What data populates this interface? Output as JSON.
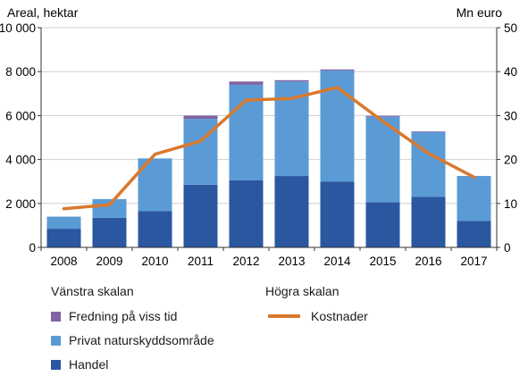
{
  "chart_data": {
    "type": "bar",
    "stacked": true,
    "categories": [
      "2008",
      "2009",
      "2010",
      "2011",
      "2012",
      "2013",
      "2014",
      "2015",
      "2016",
      "2017"
    ],
    "left_axis": {
      "title": "Areal, hektar",
      "ylim": [
        0,
        10000
      ],
      "ticks": [
        0,
        2000,
        4000,
        6000,
        8000,
        10000
      ],
      "tick_labels": [
        "0",
        "2 000",
        "4 000",
        "6 000",
        "8 000",
        "10 000"
      ]
    },
    "right_axis": {
      "title": "Mn euro",
      "ylim": [
        0,
        50
      ],
      "ticks": [
        0,
        10,
        20,
        30,
        40,
        50
      ],
      "tick_labels": [
        "0",
        "10",
        "20",
        "30",
        "40",
        "50"
      ]
    },
    "series": [
      {
        "name": "Handel",
        "axis": "left",
        "color": "#2b57a0",
        "values": [
          850,
          1350,
          1650,
          2850,
          3050,
          3250,
          3000,
          2050,
          2300,
          1200
        ]
      },
      {
        "name": "Privat naturskyddsområde",
        "axis": "left",
        "color": "#5b9bd5",
        "values": [
          550,
          850,
          2400,
          3000,
          4350,
          4300,
          5050,
          3900,
          2950,
          2050
        ]
      },
      {
        "name": "Fredning på viss tid",
        "axis": "left",
        "color": "#8064a2",
        "values": [
          0,
          0,
          0,
          150,
          150,
          60,
          50,
          40,
          30,
          0
        ]
      },
      {
        "name": "Kostnader",
        "axis": "right",
        "type": "line",
        "color": "#d9782d",
        "values": [
          8.8,
          9.7,
          21.2,
          24.2,
          33.5,
          33.9,
          36.4,
          28.7,
          21.4,
          16
        ]
      }
    ],
    "grid": true,
    "legend": {
      "left_header": "Vänstra skalan",
      "right_header": "Högra skalan",
      "placement": "bottom"
    }
  }
}
